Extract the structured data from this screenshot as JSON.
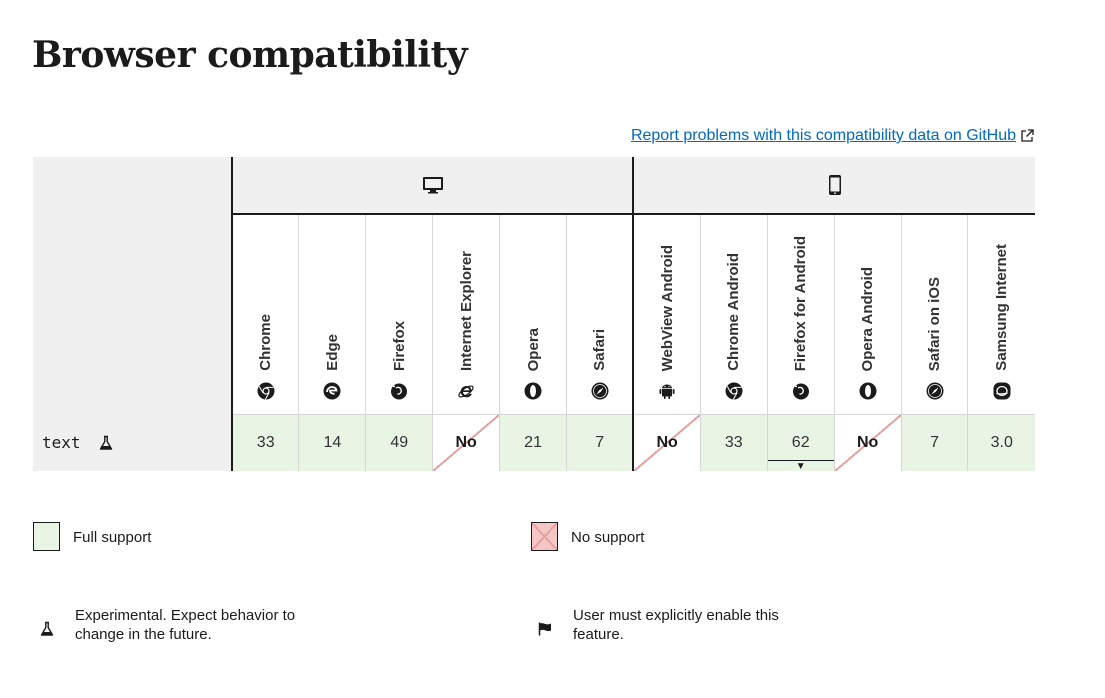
{
  "page": {
    "title": "Browser compatibility",
    "report_link": "Report problems with this compatibility data on GitHub"
  },
  "platforms": [
    {
      "name": "desktop",
      "icon": "desktop-icon"
    },
    {
      "name": "mobile",
      "icon": "mobile-icon"
    }
  ],
  "browsers": [
    {
      "name": "Chrome",
      "icon": "chrome-icon"
    },
    {
      "name": "Edge",
      "icon": "edge-icon"
    },
    {
      "name": "Firefox",
      "icon": "firefox-icon"
    },
    {
      "name": "Internet Explorer",
      "icon": "internet-explorer-icon"
    },
    {
      "name": "Opera",
      "icon": "opera-icon"
    },
    {
      "name": "Safari",
      "icon": "safari-icon"
    },
    {
      "name": "WebView Android",
      "icon": "android-icon"
    },
    {
      "name": "Chrome Android",
      "icon": "chrome-icon"
    },
    {
      "name": "Firefox for Android",
      "icon": "firefox-icon"
    },
    {
      "name": "Opera Android",
      "icon": "opera-icon"
    },
    {
      "name": "Safari on iOS",
      "icon": "safari-icon"
    },
    {
      "name": "Samsung Internet",
      "icon": "samsung-internet-icon"
    }
  ],
  "feature": {
    "name": "text",
    "experimental_icon": "flask-icon",
    "support": [
      {
        "value": "33",
        "status": "full"
      },
      {
        "value": "14",
        "status": "full"
      },
      {
        "value": "49",
        "status": "full"
      },
      {
        "value": "No",
        "status": "no"
      },
      {
        "value": "21",
        "status": "full"
      },
      {
        "value": "7",
        "status": "full"
      },
      {
        "value": "No",
        "status": "no"
      },
      {
        "value": "33",
        "status": "full"
      },
      {
        "value": "62",
        "status": "full",
        "has_notes": true
      },
      {
        "value": "No",
        "status": "no"
      },
      {
        "value": "7",
        "status": "full"
      },
      {
        "value": "3.0",
        "status": "full"
      }
    ]
  },
  "legend": {
    "full_support": "Full support",
    "no_support": "No support",
    "experimental": "Experimental. Expect behavior to change in the future.",
    "flag": "User must explicitly enable this feature."
  },
  "colors": {
    "full_support_bg": "#e8f5e5",
    "no_support_bg": "#f4c6c6",
    "link": "#0069c2"
  }
}
